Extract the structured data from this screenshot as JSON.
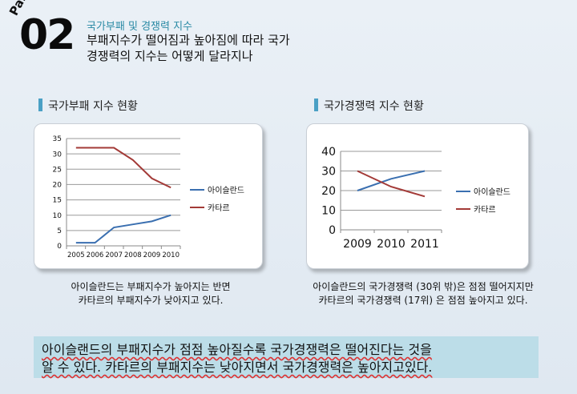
{
  "header": {
    "part_label": "Part",
    "part_number": "02",
    "subtitle": "국가부패 및 경쟁력 지수",
    "title_line1": "부패지수가 떨어짐과 높아짐에 따라 국가",
    "title_line2": "경쟁력의 지수는 어떻게 달라지나"
  },
  "left_panel": {
    "section_title": "국가부패 지수 현황",
    "caption_line1": "아이슬란드는 부패지수가 높아지는 반면",
    "caption_line2": "카타르의 부패지수가 낮아지고 있다."
  },
  "right_panel": {
    "section_title": "국가경쟁력 지수 현황",
    "caption_line1": "아이슬란드의 국가경쟁력 (30위 밖)은 점점 떨어지지만",
    "caption_line2": "카타르의 국가경쟁력 (17위) 은 점점 높아지고 있다."
  },
  "summary": {
    "line1": "아이슬랜드의 부패지수가 점점 높아질수록 국가경쟁력은 떨어진다는 것을",
    "line2": "알 수 있다. 카타르의 부패지수는 낮아지면서 국가경쟁력은 높아지고있다."
  },
  "colors": {
    "iceland": "#3a6fb0",
    "qatar": "#a33a37",
    "accent": "#4aa0c5",
    "subtitle": "#2a8aa5",
    "summary_bg": "#bcdde8"
  },
  "chart_data": [
    {
      "type": "line",
      "title": "",
      "x": [
        "2005",
        "2006",
        "2007",
        "2008",
        "2009",
        "2010"
      ],
      "ylim": [
        0,
        35
      ],
      "yticks": [
        0,
        5,
        10,
        15,
        20,
        25,
        30,
        35
      ],
      "grid": true,
      "legend": "right",
      "series": [
        {
          "name": "아이슬란드",
          "values": [
            1,
            1,
            6,
            7,
            8,
            10
          ]
        },
        {
          "name": "카타르",
          "values": [
            32,
            32,
            32,
            28,
            22,
            19
          ]
        }
      ]
    },
    {
      "type": "line",
      "title": "",
      "x": [
        "2009",
        "2010",
        "2011"
      ],
      "ylim": [
        0,
        40
      ],
      "yticks": [
        0,
        10,
        20,
        30,
        40
      ],
      "grid": true,
      "legend": "right",
      "series": [
        {
          "name": "아이슬란드",
          "values": [
            20,
            26,
            30
          ]
        },
        {
          "name": "카타르",
          "values": [
            30,
            22,
            17
          ]
        }
      ]
    }
  ]
}
